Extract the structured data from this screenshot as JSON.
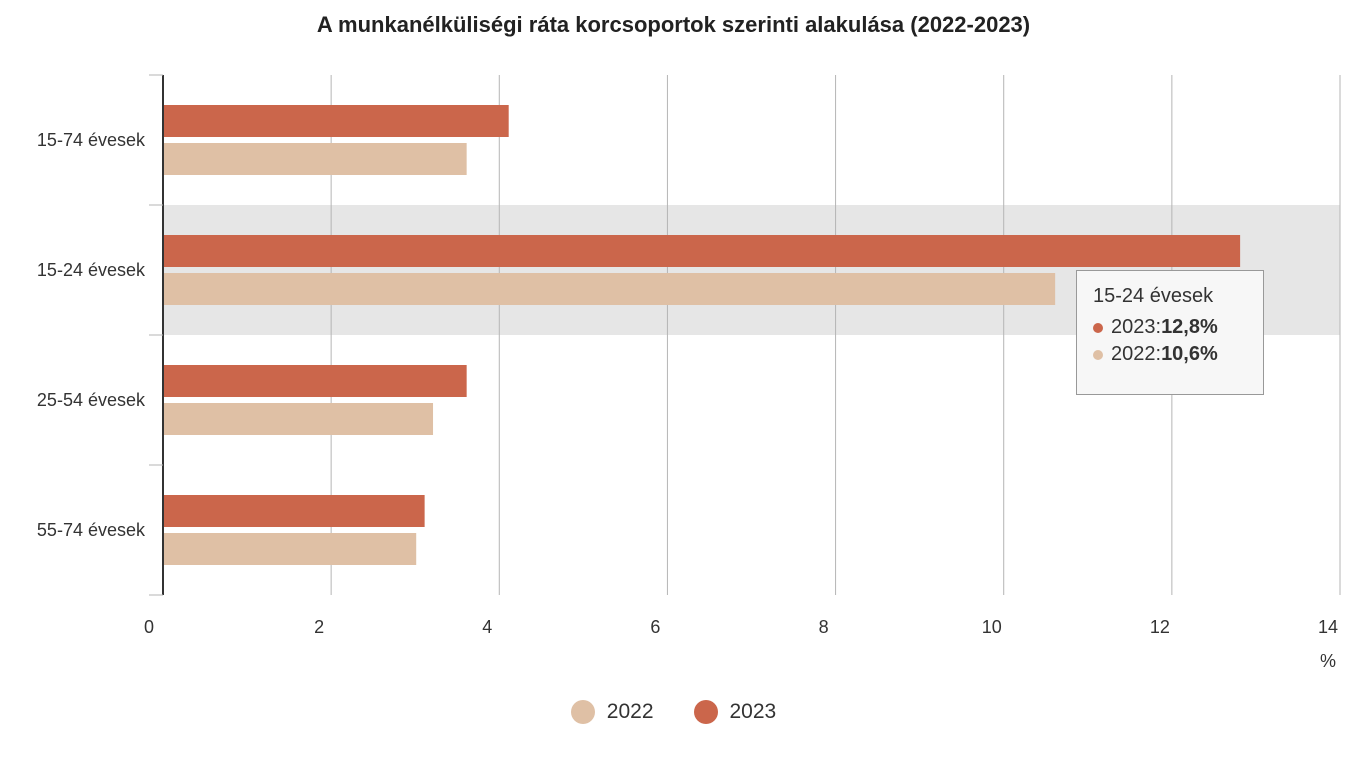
{
  "chart_data": {
    "type": "bar",
    "orientation": "horizontal",
    "title": "A munkanélküliségi ráta korcsoportok szerinti alakulása (2022-2023)",
    "categories": [
      "15-74 évesek",
      "15-24 évesek",
      "25-54 évesek",
      "55-74 évesek"
    ],
    "series": [
      {
        "name": "2023",
        "color": "#cb664b",
        "values": [
          4.1,
          12.8,
          3.6,
          3.1
        ]
      },
      {
        "name": "2022",
        "color": "#dfc0a5",
        "values": [
          3.6,
          10.6,
          3.2,
          3.0
        ]
      }
    ],
    "xlim": [
      0,
      14
    ],
    "xticks": [
      "0",
      "2",
      "4",
      "6",
      "8",
      "10",
      "12",
      "14"
    ],
    "xlabel": "%",
    "grid": true,
    "legend": {
      "placement": "bottom",
      "order": [
        "2022",
        "2023"
      ]
    },
    "highlighted_category": "15-24 évesek"
  },
  "tooltip": {
    "title": "15-24 évesek",
    "rows": [
      {
        "label": "2023",
        "sep": ": ",
        "value": "12,8%",
        "color": "#cb664b"
      },
      {
        "label": "2022",
        "sep": ": ",
        "value": "10,6%",
        "color": "#dfc0a5"
      }
    ]
  },
  "colors": {
    "grid": "#b5b5b5",
    "axis": "#333333",
    "highlight_band": "#e6e6e6"
  }
}
